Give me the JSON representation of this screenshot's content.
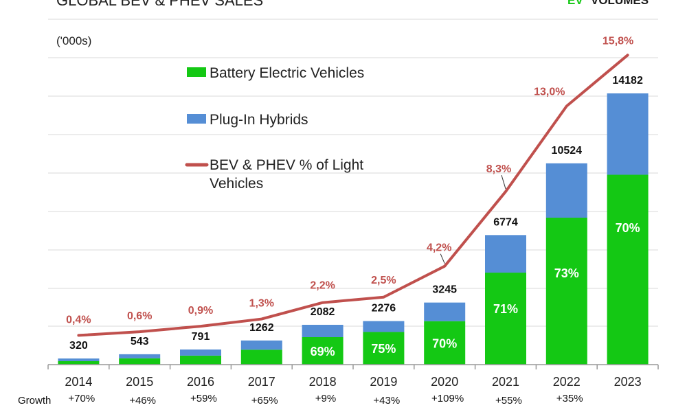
{
  "header": {
    "title": "GLOBAL BEV & PHEV SALES",
    "brand": "VOLUMES",
    "brand_mark": "EV",
    "unit_label": "('000s)"
  },
  "colors": {
    "bev": "#14c814",
    "phev": "#558ed5",
    "line": "#c0504d",
    "grid": "#d9d9d9",
    "axis": "#999999"
  },
  "chart_data": {
    "type": "bar",
    "stacked": true,
    "title": "GLOBAL BEV & PHEV SALES",
    "ylabel": "('000s)",
    "ylim": [
      0,
      16000
    ],
    "grid": true,
    "categories": [
      "2014",
      "2015",
      "2016",
      "2017",
      "2018",
      "2019",
      "2020",
      "2021",
      "2022",
      "2023"
    ],
    "totals": [
      320,
      543,
      791,
      1262,
      2082,
      2276,
      3245,
      6774,
      10524,
      14182
    ],
    "series": [
      {
        "name": "Battery Electric Vehicles",
        "values": [
          180,
          330,
          470,
          780,
          1436,
          1707,
          2272,
          4810,
          7683,
          9927
        ]
      },
      {
        "name": "Plug-In Hybrids",
        "values": [
          140,
          213,
          321,
          482,
          646,
          569,
          973,
          1964,
          2841,
          4255
        ]
      }
    ],
    "bev_share_labels": [
      "",
      "",
      "",
      "",
      "69%",
      "75%",
      "70%",
      "71%",
      "73%",
      "70%"
    ],
    "line_series": {
      "name": "BEV & PHEV % of Light Vehicles",
      "values": [
        0.4,
        0.6,
        0.9,
        1.3,
        2.2,
        2.5,
        4.2,
        8.3,
        13.0,
        15.8
      ],
      "labels": [
        "0,4%",
        "0,6%",
        "0,9%",
        "1,3%",
        "2,2%",
        "2,5%",
        "4,2%",
        "8,3%",
        "13,0%",
        "15,8%"
      ]
    },
    "growth_label": "Growth",
    "growth": [
      "+70%",
      "+46%",
      "+59%",
      "+65%",
      "+9%",
      "+43%",
      "+109%",
      "+55%",
      "+35%"
    ],
    "legend": [
      "Battery Electric Vehicles",
      "Plug-In Hybrids",
      "BEV & PHEV % of Light Vehicles"
    ],
    "legend_line_text": [
      "BEV & PHEV % of Light",
      "Vehicles"
    ]
  }
}
